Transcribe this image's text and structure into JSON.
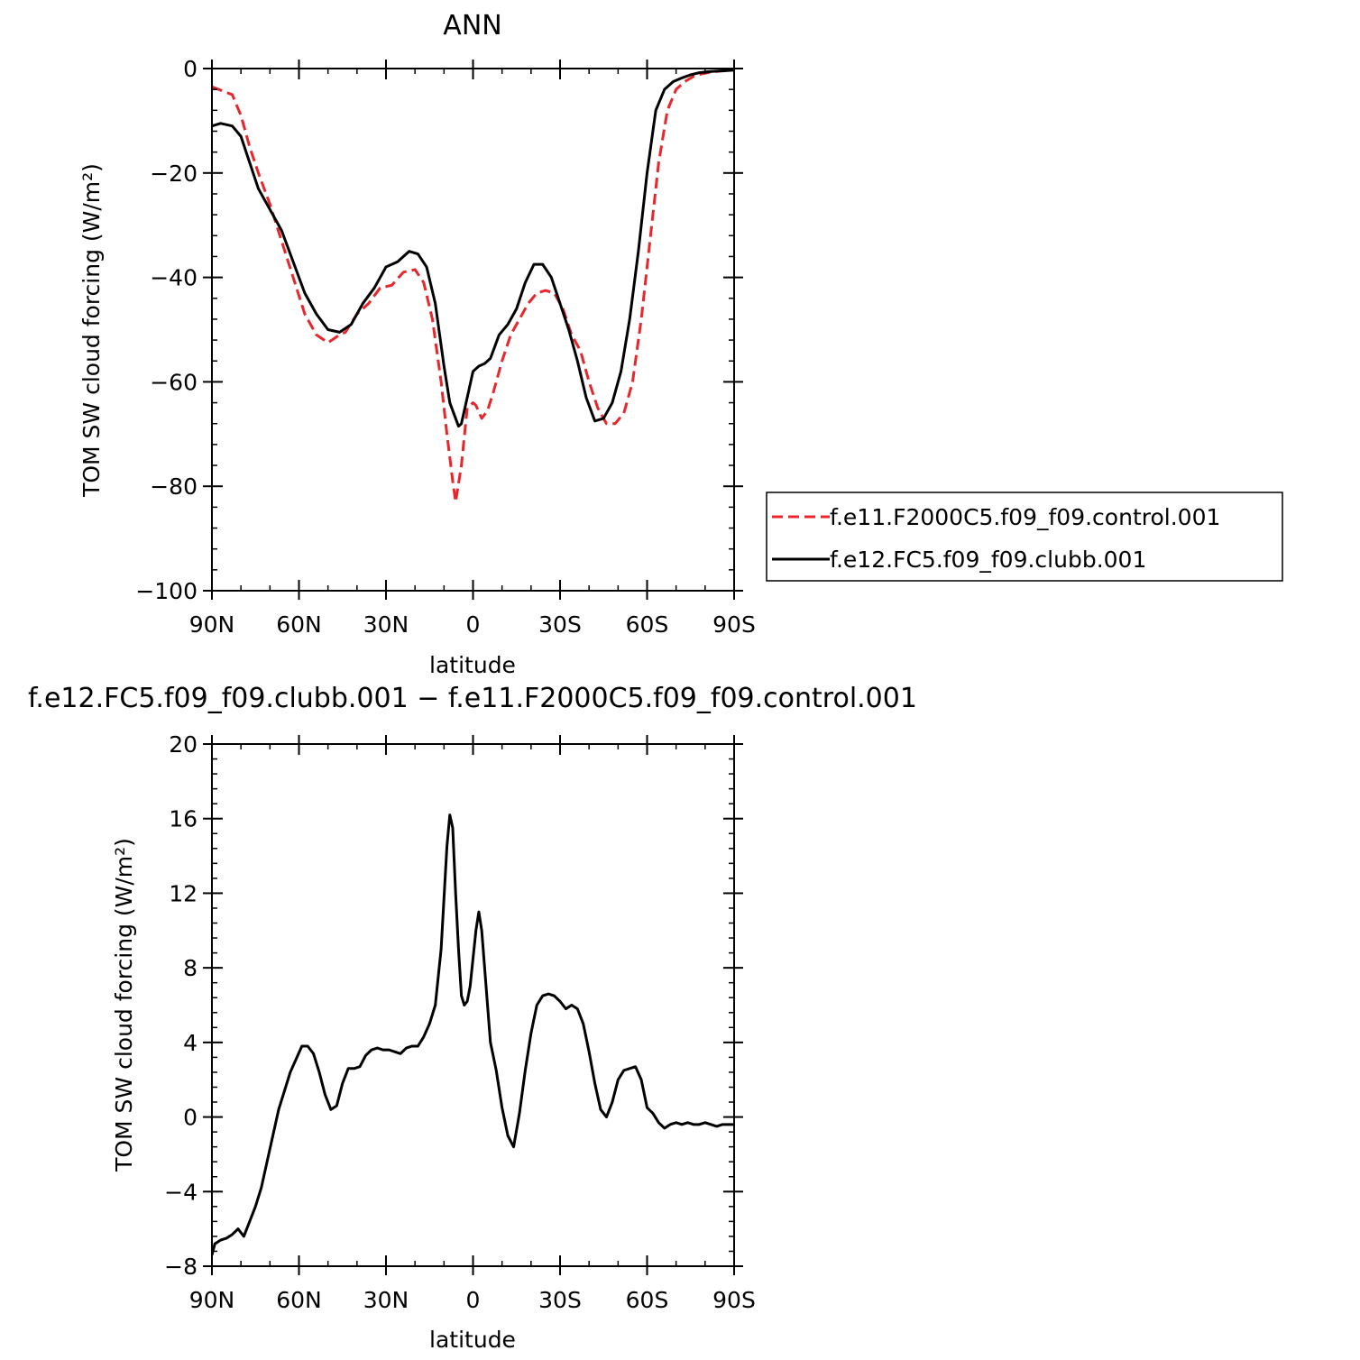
{
  "chart_data": [
    {
      "type": "line",
      "title": "ANN",
      "xlabel": "latitude",
      "ylabel": "TOM SW cloud forcing (W/m²)",
      "xlim": [
        -90,
        90
      ],
      "ylim": [
        -100,
        0
      ],
      "x_ticks": [
        -90,
        -60,
        -30,
        0,
        30,
        60,
        90
      ],
      "x_tick_labels": [
        "90N",
        "60N",
        "30N",
        "0",
        "30S",
        "60S",
        "90S"
      ],
      "y_ticks": [
        -100,
        -80,
        -60,
        -40,
        -20,
        0
      ],
      "y_tick_labels": [
        "−100",
        "−80",
        "−60",
        "−40",
        "−20",
        "0"
      ],
      "x_note": "x = latitude in degrees, negative = north, positive = south (axis reads 90N to 90S)",
      "legend_position": "right",
      "series": [
        {
          "name": "f.e11.F2000C5.f09_f09.control.001",
          "color": "#e8262b",
          "dash": "dashed",
          "x": [
            -90,
            -83,
            -80,
            -77,
            -74,
            -70,
            -66,
            -62,
            -58,
            -54,
            -50,
            -46,
            -44,
            -40,
            -36,
            -32,
            -28,
            -24,
            -20,
            -17,
            -14,
            -11,
            -9,
            -7,
            -6,
            -4,
            -2,
            0,
            1,
            3,
            5,
            7,
            10,
            13,
            16,
            19,
            22,
            25,
            28,
            31,
            34,
            37,
            40,
            43,
            46,
            49,
            52,
            55,
            58,
            61,
            64,
            67,
            70,
            73,
            76,
            79,
            82,
            85,
            87,
            90
          ],
          "y": [
            -3.5,
            -5,
            -9,
            -15,
            -20,
            -26,
            -33,
            -40,
            -47,
            -51,
            -52.5,
            -51,
            -50.5,
            -47,
            -45,
            -42,
            -41.5,
            -39,
            -38.5,
            -41,
            -48,
            -60,
            -70,
            -79,
            -83,
            -76,
            -65,
            -64,
            -64.5,
            -67,
            -65.5,
            -62,
            -56,
            -51,
            -48,
            -45,
            -43,
            -42.5,
            -43,
            -46,
            -51,
            -54,
            -60,
            -65,
            -68,
            -68,
            -66,
            -60,
            -48,
            -33,
            -18,
            -8,
            -4,
            -2.5,
            -1.5,
            -1,
            -0.7,
            -0.5,
            -0.4,
            -0.3
          ]
        },
        {
          "name": "f.e12.FC5.f09_f09.clubb.001",
          "color": "#000000",
          "dash": "solid",
          "x": [
            -90,
            -87,
            -83,
            -80,
            -77,
            -74,
            -70,
            -66,
            -62,
            -58,
            -54,
            -50,
            -46,
            -42,
            -38,
            -34,
            -30,
            -26,
            -22,
            -19,
            -16,
            -13,
            -10,
            -8,
            -6,
            -5,
            -4,
            -2,
            0,
            2,
            4,
            6,
            9,
            12,
            15,
            18,
            21,
            24,
            27,
            30,
            33,
            36,
            39,
            42,
            45,
            48,
            51,
            54,
            57,
            60,
            63,
            66,
            69,
            72,
            75,
            78,
            81,
            84,
            87,
            90
          ],
          "y": [
            -11,
            -10.5,
            -11,
            -13,
            -18,
            -23,
            -27,
            -31,
            -37,
            -43,
            -47,
            -50,
            -50.5,
            -49,
            -45,
            -42,
            -38,
            -37,
            -35,
            -35.5,
            -38,
            -45,
            -57,
            -64,
            -67,
            -68.5,
            -68,
            -63,
            -58,
            -57,
            -56.5,
            -55.5,
            -51,
            -49,
            -46,
            -41,
            -37.5,
            -37.5,
            -40,
            -45,
            -50,
            -56,
            -63,
            -67.5,
            -67,
            -64,
            -58,
            -48,
            -35,
            -20,
            -8,
            -4,
            -2.5,
            -1.8,
            -1.2,
            -0.8,
            -0.6,
            -0.5,
            -0.4,
            -0.3
          ]
        }
      ]
    },
    {
      "type": "line",
      "title": "f.e12.FC5.f09_f09.clubb.001 − f.e11.F2000C5.f09_f09.control.001",
      "xlabel": "latitude",
      "ylabel": "TOM SW cloud forcing (W/m²)",
      "xlim": [
        -90,
        90
      ],
      "ylim": [
        -8,
        20
      ],
      "x_ticks": [
        -90,
        -60,
        -30,
        0,
        30,
        60,
        90
      ],
      "x_tick_labels": [
        "90N",
        "60N",
        "30N",
        "0",
        "30S",
        "60S",
        "90S"
      ],
      "y_ticks": [
        -8,
        -4,
        0,
        4,
        8,
        12,
        16,
        20
      ],
      "y_tick_labels": [
        "−8",
        "−4",
        "0",
        "4",
        "8",
        "12",
        "16",
        "20"
      ],
      "series": [
        {
          "name": "",
          "color": "#000000",
          "dash": "solid",
          "x": [
            -90,
            -89,
            -87,
            -85,
            -83,
            -81,
            -79,
            -77,
            -75,
            -73,
            -71,
            -69,
            -67,
            -65,
            -63,
            -61,
            -59,
            -57,
            -55,
            -53,
            -51,
            -49,
            -47,
            -45,
            -43,
            -41,
            -39,
            -37,
            -35,
            -33,
            -31,
            -29,
            -27,
            -25,
            -23,
            -21,
            -19,
            -17,
            -15,
            -13,
            -11,
            -9,
            -8,
            -7,
            -6,
            -5,
            -4,
            -3,
            -2,
            -1,
            0,
            1,
            2,
            3,
            4,
            5,
            6,
            8,
            10,
            12,
            14,
            16,
            18,
            20,
            22,
            24,
            26,
            28,
            30,
            32,
            34,
            36,
            38,
            40,
            42,
            44,
            46,
            48,
            50,
            52,
            54,
            56,
            58,
            60,
            62,
            64,
            66,
            68,
            70,
            72,
            74,
            76,
            78,
            80,
            82,
            84,
            86,
            88,
            90
          ],
          "y": [
            -7.4,
            -6.8,
            -6.6,
            -6.5,
            -6.3,
            -6.0,
            -6.4,
            -5.6,
            -4.8,
            -3.8,
            -2.4,
            -1.0,
            0.4,
            1.4,
            2.4,
            3.1,
            3.8,
            3.8,
            3.4,
            2.4,
            1.2,
            0.4,
            0.6,
            1.8,
            2.6,
            2.6,
            2.7,
            3.3,
            3.6,
            3.7,
            3.6,
            3.6,
            3.5,
            3.4,
            3.7,
            3.8,
            3.8,
            4.3,
            5.0,
            6.0,
            9.0,
            14.5,
            16.2,
            15.5,
            12.0,
            9.0,
            6.5,
            6.0,
            6.2,
            7.0,
            8.5,
            10.0,
            11.0,
            10.0,
            8.0,
            6.0,
            4.0,
            2.5,
            0.5,
            -1.0,
            -1.6,
            0.2,
            2.5,
            4.5,
            6.0,
            6.5,
            6.6,
            6.5,
            6.2,
            5.8,
            6.0,
            5.8,
            5.0,
            3.5,
            1.8,
            0.4,
            0.0,
            0.8,
            2.0,
            2.5,
            2.6,
            2.7,
            2.0,
            0.5,
            0.2,
            -0.3,
            -0.6,
            -0.4,
            -0.3,
            -0.4,
            -0.3,
            -0.4,
            -0.4,
            -0.3,
            -0.4,
            -0.5,
            -0.4,
            -0.4,
            -0.4
          ]
        }
      ]
    }
  ]
}
